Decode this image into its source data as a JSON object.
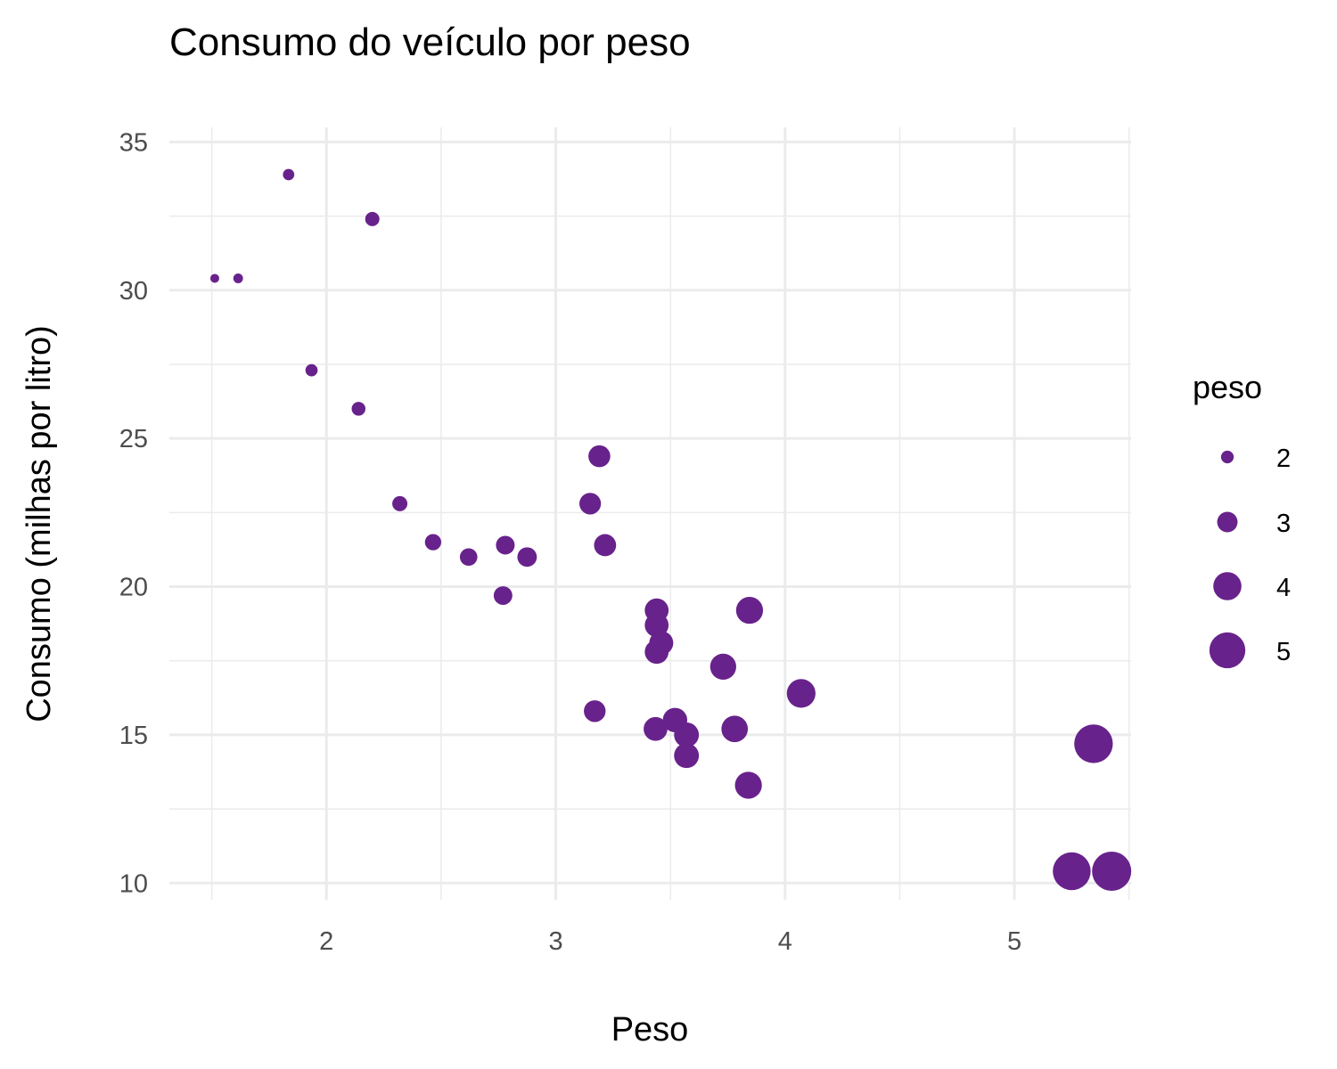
{
  "chart_data": {
    "type": "scatter",
    "title": "Consumo do veículo por peso",
    "xlabel": "Peso",
    "ylabel": "Consumo (milhas por litro)",
    "xlim": [
      1.5,
      5.4
    ],
    "ylim": [
      10.4,
      33.9
    ],
    "x_ticks": [
      2,
      3,
      4,
      5
    ],
    "y_ticks": [
      10,
      15,
      20,
      25,
      30,
      35
    ],
    "grid": true,
    "point_color": "#68228b",
    "size_mapped_to": "peso",
    "legend": {
      "title": "peso",
      "placement": "right",
      "entries": [
        2,
        3,
        4,
        5
      ]
    },
    "points": [
      {
        "x": 1.513,
        "y": 30.4
      },
      {
        "x": 1.615,
        "y": 30.4
      },
      {
        "x": 1.835,
        "y": 33.9
      },
      {
        "x": 1.935,
        "y": 27.3
      },
      {
        "x": 2.14,
        "y": 26.0
      },
      {
        "x": 2.2,
        "y": 32.4
      },
      {
        "x": 2.32,
        "y": 22.8
      },
      {
        "x": 2.465,
        "y": 21.5
      },
      {
        "x": 2.62,
        "y": 21.0
      },
      {
        "x": 2.77,
        "y": 19.7
      },
      {
        "x": 2.78,
        "y": 21.4
      },
      {
        "x": 2.875,
        "y": 21.0
      },
      {
        "x": 3.15,
        "y": 22.8
      },
      {
        "x": 3.17,
        "y": 15.8
      },
      {
        "x": 3.19,
        "y": 24.4
      },
      {
        "x": 3.215,
        "y": 21.4
      },
      {
        "x": 3.435,
        "y": 15.2
      },
      {
        "x": 3.44,
        "y": 18.7
      },
      {
        "x": 3.44,
        "y": 19.2
      },
      {
        "x": 3.44,
        "y": 17.8
      },
      {
        "x": 3.46,
        "y": 18.1
      },
      {
        "x": 3.52,
        "y": 15.5
      },
      {
        "x": 3.57,
        "y": 15.0
      },
      {
        "x": 3.57,
        "y": 14.3
      },
      {
        "x": 3.73,
        "y": 17.3
      },
      {
        "x": 3.78,
        "y": 15.2
      },
      {
        "x": 3.84,
        "y": 13.3
      },
      {
        "x": 3.845,
        "y": 19.2
      },
      {
        "x": 4.07,
        "y": 16.4
      },
      {
        "x": 5.25,
        "y": 10.4
      },
      {
        "x": 5.345,
        "y": 14.7
      },
      {
        "x": 5.424,
        "y": 10.4
      }
    ]
  }
}
